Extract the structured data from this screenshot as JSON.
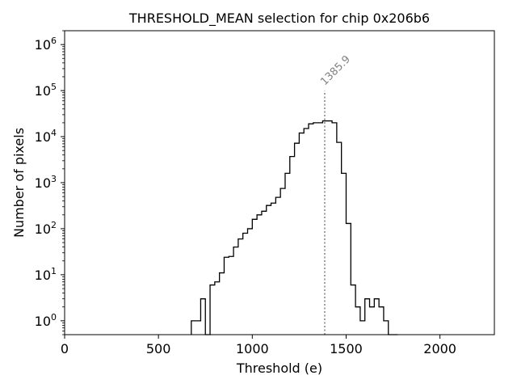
{
  "chart_data": {
    "type": "histogram",
    "title": "THRESHOLD_MEAN selection for chip 0x206b6",
    "xlabel": "Threshold (e)",
    "ylabel": "Number of pixels",
    "xlim": [
      0,
      2290
    ],
    "ylim": [
      0.5,
      2000000
    ],
    "yscale": "log",
    "xticks": [
      0,
      500,
      1000,
      1500,
      2000
    ],
    "xtick_labels": [
      "0",
      "500",
      "1000",
      "1500",
      "2000"
    ],
    "yticks": [
      1,
      10,
      100,
      1000,
      10000,
      100000,
      1000000
    ],
    "ytick_base": "10",
    "ytick_exponents": [
      "0",
      "1",
      "2",
      "3",
      "4",
      "5",
      "6"
    ],
    "bin_edges": [
      675,
      700,
      725,
      750,
      775,
      800,
      825,
      850,
      875,
      900,
      925,
      950,
      975,
      1000,
      1025,
      1050,
      1075,
      1100,
      1125,
      1150,
      1175,
      1200,
      1225,
      1250,
      1275,
      1300,
      1325,
      1350,
      1375,
      1400,
      1425,
      1450,
      1475,
      1500,
      1525,
      1550,
      1575,
      1600,
      1625,
      1650,
      1675,
      1700,
      1725,
      1750,
      1775
    ],
    "counts": [
      1,
      1,
      3,
      0,
      6,
      7,
      11,
      24,
      25,
      40,
      60,
      80,
      100,
      160,
      200,
      240,
      320,
      360,
      480,
      750,
      1600,
      3700,
      7200,
      12000,
      15000,
      19000,
      20000,
      20000,
      22000,
      22000,
      20000,
      7500,
      1600,
      130,
      6,
      2,
      1,
      3,
      2,
      3,
      2,
      1,
      0,
      0
    ],
    "color": "#000000",
    "vline": {
      "x": 1385.9,
      "ymax": 100000,
      "label": "1385.9",
      "style": "dotted",
      "color": "#808080"
    }
  }
}
